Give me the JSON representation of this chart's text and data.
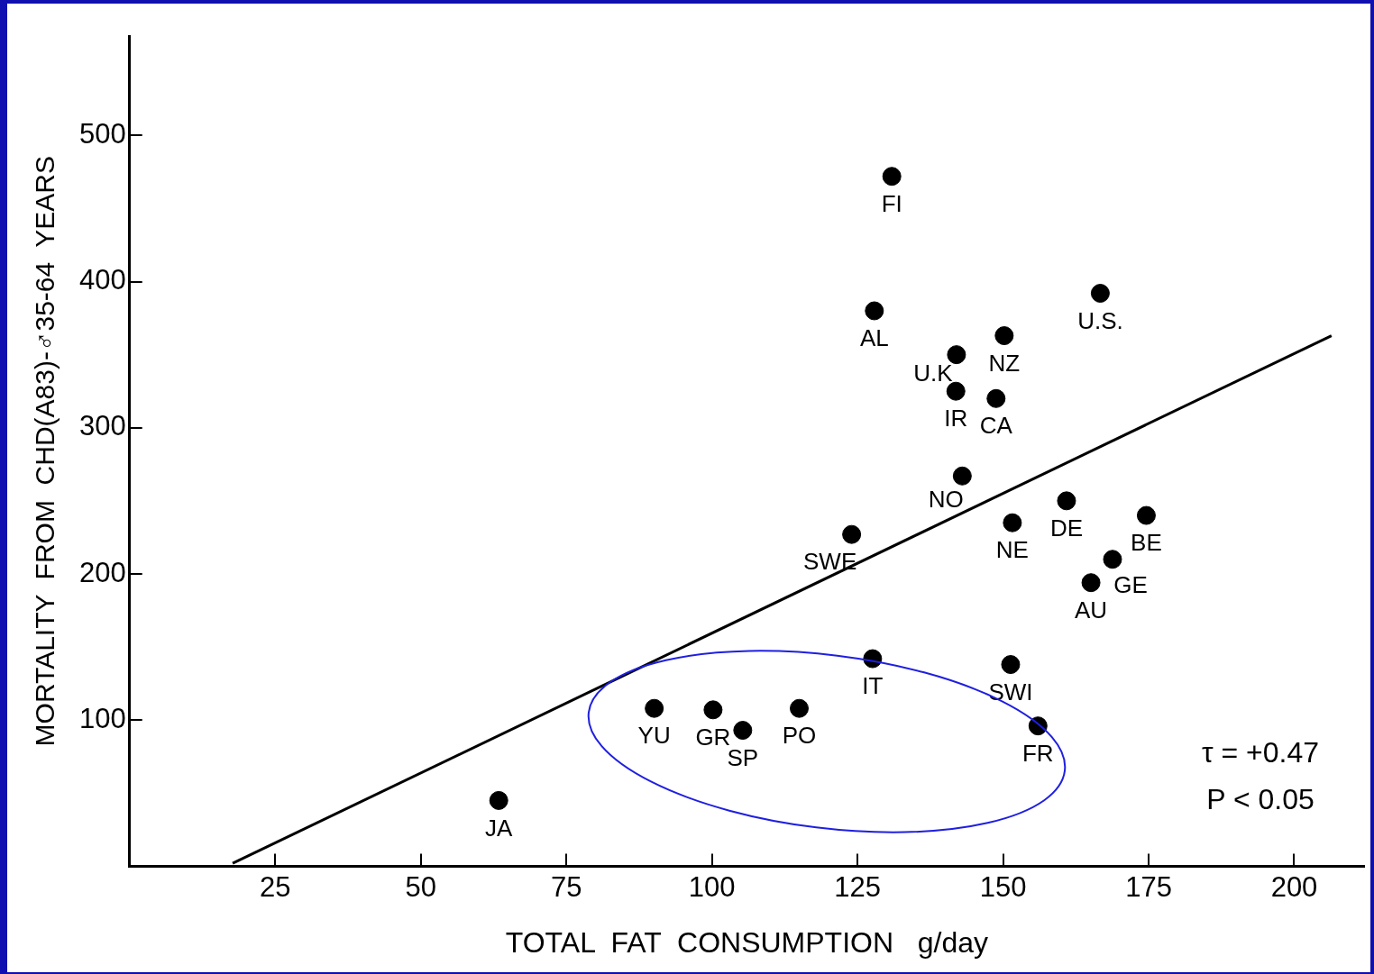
{
  "chart_data": {
    "type": "scatter",
    "xlabel": "TOTAL  FAT  CONSUMPTION   g/day",
    "ylabel": "MORTALITY  FROM  CHD(A83)-♂35-64  YEARS",
    "xlim": [
      0,
      212
    ],
    "xticks": [
      25,
      50,
      75,
      100,
      125,
      150,
      175,
      200
    ],
    "ylim": [
      0,
      568
    ],
    "yticks": [
      100,
      200,
      300,
      400,
      500
    ],
    "grid": false,
    "marker": "circle",
    "series": [
      {
        "type": "scatter",
        "color": "#000000",
        "x": [
          130.9,
          127.9,
          166.7,
          150.2,
          142,
          141.9,
          148.8,
          143,
          160.9,
          174.6,
          151.6,
          124,
          168.8,
          165.1,
          127.6,
          151.3,
          90.1,
          100.2,
          115,
          105.3,
          156,
          63.4
        ],
        "values": [
          472,
          380,
          392,
          363,
          350,
          325,
          320,
          267,
          250,
          240,
          235,
          227,
          210,
          194,
          142,
          138,
          108,
          107,
          108,
          93,
          96,
          45
        ]
      },
      {
        "type": "line",
        "color": "#000000",
        "marker": "none",
        "x": [
          17.7,
          206.4
        ],
        "values": [
          2,
          363
        ]
      }
    ],
    "annotations": [
      {
        "text": "FI",
        "x": 130.9,
        "y": 472
      },
      {
        "text": "AL",
        "x": 127.9,
        "y": 380
      },
      {
        "text": "U.S.",
        "x": 166.7,
        "y": 392
      },
      {
        "text": "NZ",
        "x": 150.2,
        "y": 363
      },
      {
        "text": "U.K",
        "x": 142,
        "y": 350
      },
      {
        "text": "IR",
        "x": 141.9,
        "y": 325
      },
      {
        "text": "CA",
        "x": 148.8,
        "y": 320
      },
      {
        "text": "NO",
        "x": 143,
        "y": 267
      },
      {
        "text": "DE",
        "x": 160.9,
        "y": 250
      },
      {
        "text": "BE",
        "x": 174.6,
        "y": 240
      },
      {
        "text": "NE",
        "x": 151.6,
        "y": 235
      },
      {
        "text": "SWE",
        "x": 124,
        "y": 227
      },
      {
        "text": "GE",
        "x": 168.8,
        "y": 210
      },
      {
        "text": "AU",
        "x": 165.1,
        "y": 194
      },
      {
        "text": "IT",
        "x": 127.6,
        "y": 142
      },
      {
        "text": "SWI",
        "x": 151.3,
        "y": 138
      },
      {
        "text": "YU",
        "x": 90.1,
        "y": 108
      },
      {
        "text": "GR",
        "x": 100.2,
        "y": 107
      },
      {
        "text": "PO",
        "x": 115,
        "y": 108
      },
      {
        "text": "SP",
        "x": 105.3,
        "y": 93
      },
      {
        "text": "FR",
        "x": 156,
        "y": 96
      },
      {
        "text": "JA",
        "x": 63.4,
        "y": 45
      },
      "τ = +0.47",
      "P < 0.05"
    ]
  }
}
